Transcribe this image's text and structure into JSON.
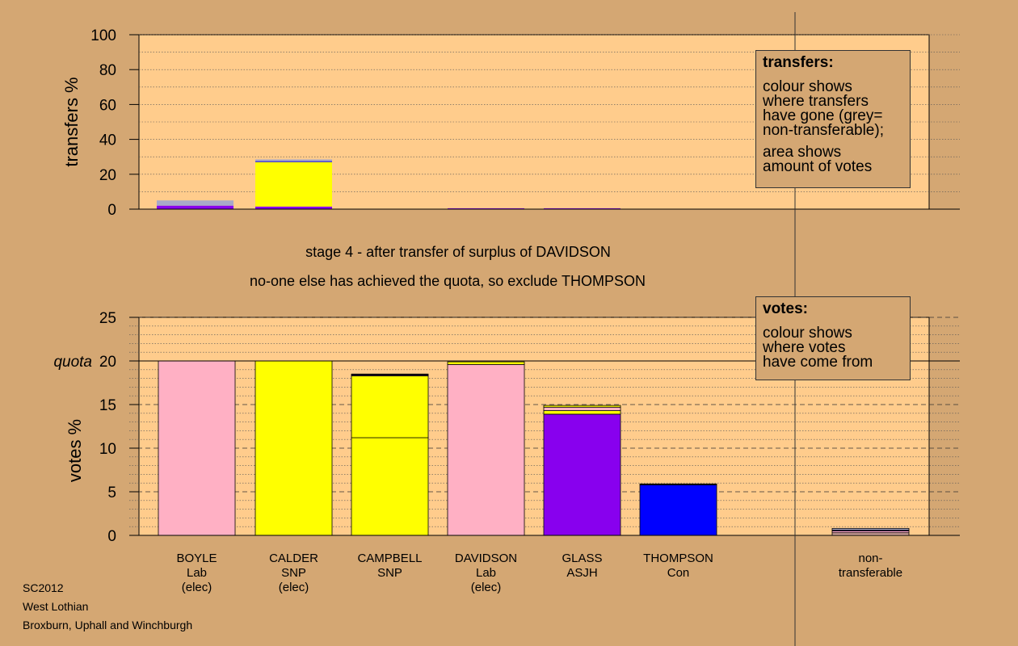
{
  "chart_data": [
    {
      "type": "bar",
      "stacked": true,
      "name": "transfers",
      "ylabel": "transfers %",
      "ylim": [
        0,
        100
      ],
      "yticks": [
        0,
        20,
        40,
        60,
        80,
        100
      ],
      "grid": "dotted horizontal",
      "categories": [
        "BOYLE",
        "CALDER",
        "CAMPBELL",
        "DAVIDSON",
        "GLASS",
        "THOMPSON",
        "non-transferable"
      ],
      "series": [
        {
          "color": "#8800ee",
          "values": [
            2.0,
            1.5,
            0,
            0,
            0.5,
            0,
            0
          ]
        },
        {
          "color": "#ffff00",
          "values": [
            0,
            25.5,
            0,
            0,
            0,
            0,
            0
          ]
        },
        {
          "color": "#0000ff",
          "values": [
            0,
            0.5,
            0,
            0,
            0,
            0,
            0
          ]
        },
        {
          "color": "#a8a8c8",
          "values": [
            3.0,
            1.0,
            0,
            0,
            0,
            0,
            0
          ]
        }
      ],
      "legend": {
        "title": "transfers:",
        "lines": [
          "colour shows",
          "where transfers",
          "have gone (grey=",
          "non-transferable);",
          "area shows",
          "amount of votes"
        ]
      }
    },
    {
      "type": "bar",
      "stacked": true,
      "name": "votes",
      "ylabel": "votes %",
      "ylim": [
        0,
        25
      ],
      "yticks": [
        0,
        5,
        10,
        15,
        20,
        25
      ],
      "quota_label": "quota",
      "quota": 20,
      "grid": "dotted horizontal",
      "categories": [
        {
          "name": "BOYLE",
          "party": "Lab",
          "status": "(elec)"
        },
        {
          "name": "CALDER",
          "party": "SNP",
          "status": "(elec)"
        },
        {
          "name": "CAMPBELL",
          "party": "SNP",
          "status": ""
        },
        {
          "name": "DAVIDSON",
          "party": "Lab",
          "status": "(elec)"
        },
        {
          "name": "GLASS",
          "party": "ASJH",
          "status": ""
        },
        {
          "name": "THOMPSON",
          "party": "Con",
          "status": ""
        },
        {
          "name": "non-",
          "party": "transferable",
          "status": ""
        }
      ],
      "stacks": [
        [
          {
            "color": "#ffb0c4",
            "value": 20.0
          }
        ],
        [
          {
            "color": "#ffff00",
            "value": 20.0
          }
        ],
        [
          {
            "color": "#ffff00",
            "value": 11.2
          },
          {
            "color": "#ffff00",
            "value": 7.1
          },
          {
            "color": "#8800ee",
            "value": 0.1
          },
          {
            "color": "#000000",
            "value": 0.1
          }
        ],
        [
          {
            "color": "#ffb0c4",
            "value": 19.6
          },
          {
            "color": "#ffff00",
            "value": 0.3
          }
        ],
        [
          {
            "color": "#8800ee",
            "value": 13.9
          },
          {
            "color": "#ffff00",
            "value": 0.4
          },
          {
            "color": "#ffb0c4",
            "value": 0.4
          },
          {
            "color": "#ffff00",
            "value": 0.2
          }
        ],
        [
          {
            "color": "#0000ff",
            "value": 5.8
          },
          {
            "color": "#000000",
            "value": 0.1
          }
        ],
        [
          {
            "color": "#d8a8a0",
            "value": 0.3
          },
          {
            "color": "#ffb0c4",
            "value": 0.2
          },
          {
            "color": "#8800ee",
            "value": 0.1
          },
          {
            "color": "#a8a8c8",
            "value": 0.2
          }
        ]
      ],
      "legend": {
        "title": "votes:",
        "lines": [
          "colour shows",
          "where votes",
          "have come from"
        ]
      }
    }
  ],
  "captions": {
    "line1": "stage 4 - after transfer of surplus of DAVIDSON",
    "line2": "no-one else has achieved the quota, so exclude THOMPSON"
  },
  "footer": {
    "line1": "SC2012",
    "line2": "West Lothian",
    "line3": "Broxburn, Uphall and Winchburgh"
  },
  "colors": {
    "background": "#d4a773",
    "plot_background": "#ffcc8c",
    "legend_background": "#d4a773"
  }
}
